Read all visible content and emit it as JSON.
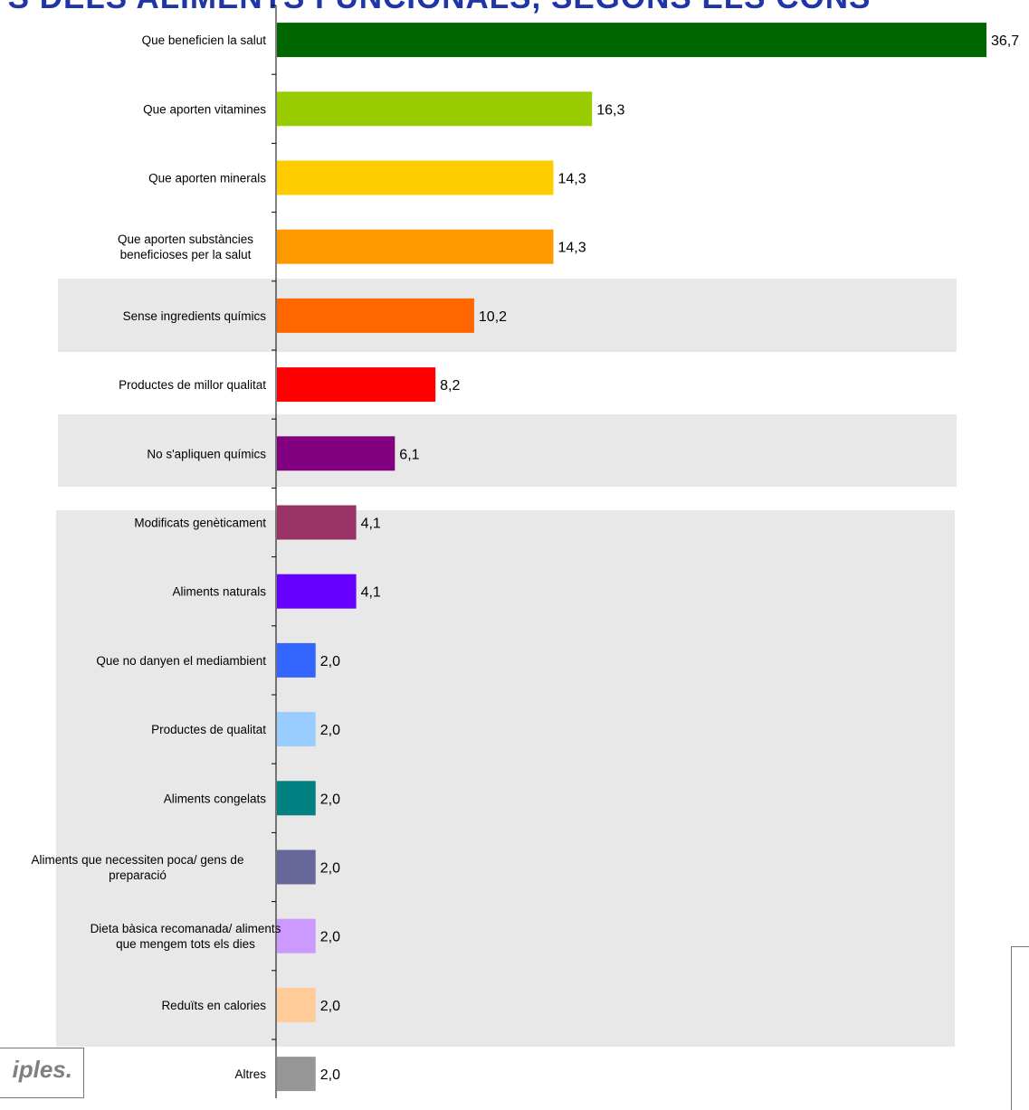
{
  "title": "UTS DELS ALIMENTS FUNCIONALS, SEGONS ELS CONS",
  "footnote": "iples.",
  "chart_data": {
    "type": "bar",
    "orientation": "horizontal",
    "categories": [
      "Que beneficien la salut",
      "Que aporten vitamines",
      "Que aporten minerals",
      "Que aporten substàncies|beneficioses per la salut",
      "Sense ingredients químics",
      "Productes de millor qualitat",
      "No s'apliquen químics",
      "Modificats genèticament",
      "Aliments naturals",
      "Que no danyen el mediambient",
      "Productes de qualitat",
      "Aliments congelats",
      "Aliments que necessiten poca/ gens de|preparació",
      "Dieta bàsica recomanada/ aliments|que mengem tots els dies",
      "Reduïts en calories",
      "Altres"
    ],
    "values": [
      36.7,
      16.3,
      14.3,
      14.3,
      10.2,
      8.2,
      6.1,
      4.1,
      4.1,
      2.0,
      2.0,
      2.0,
      2.0,
      2.0,
      2.0,
      2.0
    ],
    "labels": [
      "36,7",
      "16,3",
      "14,3",
      "14,3",
      "10,2",
      "8,2",
      "6,1",
      "4,1",
      "4,1",
      "2,0",
      "2,0",
      "2,0",
      "2,0",
      "2,0",
      "2,0",
      "2,0"
    ],
    "colors": [
      "#006600",
      "#99cc00",
      "#ffcc00",
      "#ff9900",
      "#ff6600",
      "#ff0000",
      "#800080",
      "#993366",
      "#6600ff",
      "#3366ff",
      "#99ccff",
      "#008080",
      "#666699",
      "#cc99ff",
      "#ffcc99",
      "#969696"
    ],
    "highlight_background": "#e8e8e8",
    "grid": false
  }
}
